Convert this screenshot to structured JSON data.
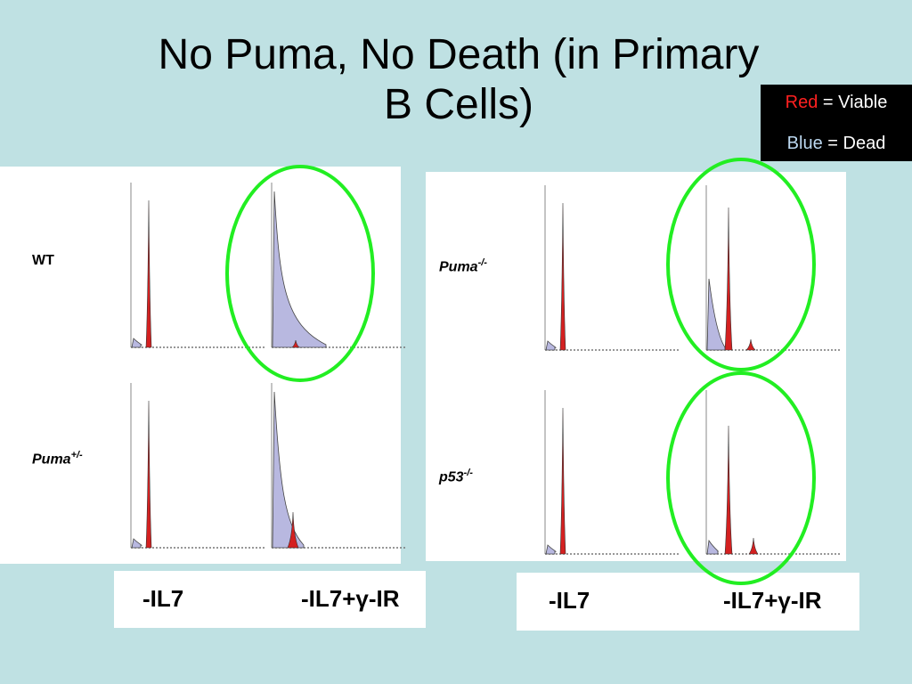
{
  "header": {
    "title_lines": [
      "No Puma, No Death (in Primary",
      "B Cells)"
    ]
  },
  "legend": {
    "red_word": "Red",
    "red_meaning": "= Viable",
    "blue_word": "Blue",
    "blue_meaning": "= Dead"
  },
  "left_panel": {
    "rows": [
      {
        "label": "WT"
      },
      {
        "label": "Puma",
        "sup": "+/-"
      }
    ],
    "captions": [
      "-IL7",
      "-IL7+γ-IR"
    ]
  },
  "right_panel": {
    "rows": [
      {
        "label": "Puma",
        "sup": "-/-"
      },
      {
        "label": "p53",
        "sup": "-/-"
      }
    ],
    "captions": [
      "-IL7",
      "-IL7+γ-IR"
    ]
  }
}
